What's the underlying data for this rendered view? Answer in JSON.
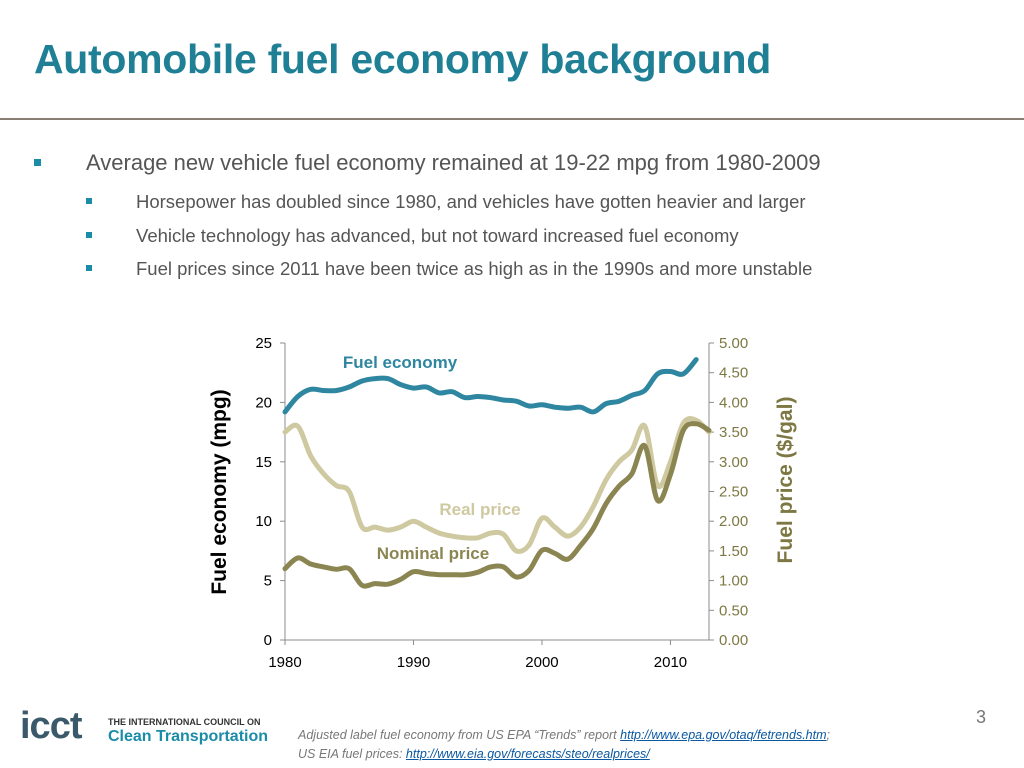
{
  "slide": {
    "title": "Automobile fuel economy background",
    "page_number": "3"
  },
  "bullets": {
    "main": "Average new vehicle fuel economy remained at 19-22 mpg from 1980-2009",
    "subs": [
      "Horsepower has doubled since 1980, and vehicles have gotten heavier and larger",
      "Vehicle technology has advanced, but not toward increased fuel economy",
      "Fuel prices since 2011 have been twice as high as in the 1990s and more unstable"
    ]
  },
  "logo": {
    "abbr": "icct",
    "line1": "THE INTERNATIONAL COUNCIL ON",
    "line2": "Clean Transportation"
  },
  "source": {
    "text1": "Adjusted label fuel economy from US EPA “Trends” report ",
    "link1": "http://www.epa.gov/otaq/fetrends.htm",
    "sep": ";",
    "text2": "US EIA fuel prices: ",
    "link2": "http://www.eia.gov/forecasts/steo/realprices/"
  },
  "colors": {
    "title": "#1f7f95",
    "fuel_economy": "#2e86a0",
    "real_price": "#cec9a0",
    "nominal_price": "#8b8552",
    "right_axis": "#7d7843"
  },
  "chart_data": {
    "type": "line",
    "ylabel": "Fuel economy (mpg)",
    "y2label": "Fuel price ($/gal)",
    "xlim": [
      1980,
      2013
    ],
    "ylim": [
      0,
      25
    ],
    "y2lim": [
      0,
      5
    ],
    "xticks": [
      "1980",
      "1990",
      "2000",
      "2010"
    ],
    "yticks": [
      "0",
      "5",
      "10",
      "15",
      "20",
      "25"
    ],
    "y2ticks": [
      "0.00",
      "0.50",
      "1.00",
      "1.50",
      "2.00",
      "2.50",
      "3.00",
      "3.50",
      "4.00",
      "4.50",
      "5.00"
    ],
    "series": [
      {
        "name": "Fuel economy",
        "axis": "left",
        "x": [
          1980,
          1981,
          1982,
          1983,
          1984,
          1985,
          1986,
          1987,
          1988,
          1989,
          1990,
          1991,
          1992,
          1993,
          1994,
          1995,
          1996,
          1997,
          1998,
          1999,
          2000,
          2001,
          2002,
          2003,
          2004,
          2005,
          2006,
          2007,
          2008,
          2009,
          2010,
          2011,
          2012
        ],
        "values": [
          19.2,
          20.5,
          21.1,
          21.0,
          21.0,
          21.3,
          21.8,
          22.0,
          22.0,
          21.5,
          21.2,
          21.3,
          20.8,
          20.9,
          20.4,
          20.5,
          20.4,
          20.2,
          20.1,
          19.7,
          19.8,
          19.6,
          19.5,
          19.6,
          19.2,
          19.9,
          20.1,
          20.6,
          21.0,
          22.4,
          22.6,
          22.4,
          23.6
        ]
      },
      {
        "name": "Real price",
        "axis": "right",
        "x": [
          1980,
          1981,
          1982,
          1983,
          1984,
          1985,
          1986,
          1987,
          1988,
          1989,
          1990,
          1991,
          1992,
          1993,
          1994,
          1995,
          1996,
          1997,
          1998,
          1999,
          2000,
          2001,
          2002,
          2003,
          2004,
          2005,
          2006,
          2007,
          2008,
          2009,
          2010,
          2011,
          2012,
          2013
        ],
        "values": [
          3.5,
          3.6,
          3.1,
          2.8,
          2.6,
          2.5,
          1.9,
          1.9,
          1.85,
          1.9,
          2.0,
          1.9,
          1.8,
          1.75,
          1.72,
          1.72,
          1.8,
          1.78,
          1.5,
          1.6,
          2.05,
          1.9,
          1.75,
          1.9,
          2.25,
          2.7,
          3.0,
          3.2,
          3.6,
          2.6,
          3.0,
          3.65,
          3.7,
          3.5
        ]
      },
      {
        "name": "Nominal price",
        "axis": "right",
        "x": [
          1980,
          1981,
          1982,
          1983,
          1984,
          1985,
          1986,
          1987,
          1988,
          1989,
          1990,
          1991,
          1992,
          1993,
          1994,
          1995,
          1996,
          1997,
          1998,
          1999,
          2000,
          2001,
          2002,
          2003,
          2004,
          2005,
          2006,
          2007,
          2008,
          2009,
          2010,
          2011,
          2012,
          2013
        ],
        "values": [
          1.2,
          1.38,
          1.28,
          1.23,
          1.19,
          1.2,
          0.92,
          0.95,
          0.94,
          1.02,
          1.15,
          1.12,
          1.1,
          1.1,
          1.1,
          1.14,
          1.23,
          1.23,
          1.06,
          1.17,
          1.51,
          1.46,
          1.36,
          1.59,
          1.88,
          2.3,
          2.59,
          2.8,
          3.27,
          2.35,
          2.79,
          3.53,
          3.64,
          3.53
        ]
      }
    ],
    "annotations": [
      "Fuel economy",
      "Real price",
      "Nominal price"
    ]
  }
}
